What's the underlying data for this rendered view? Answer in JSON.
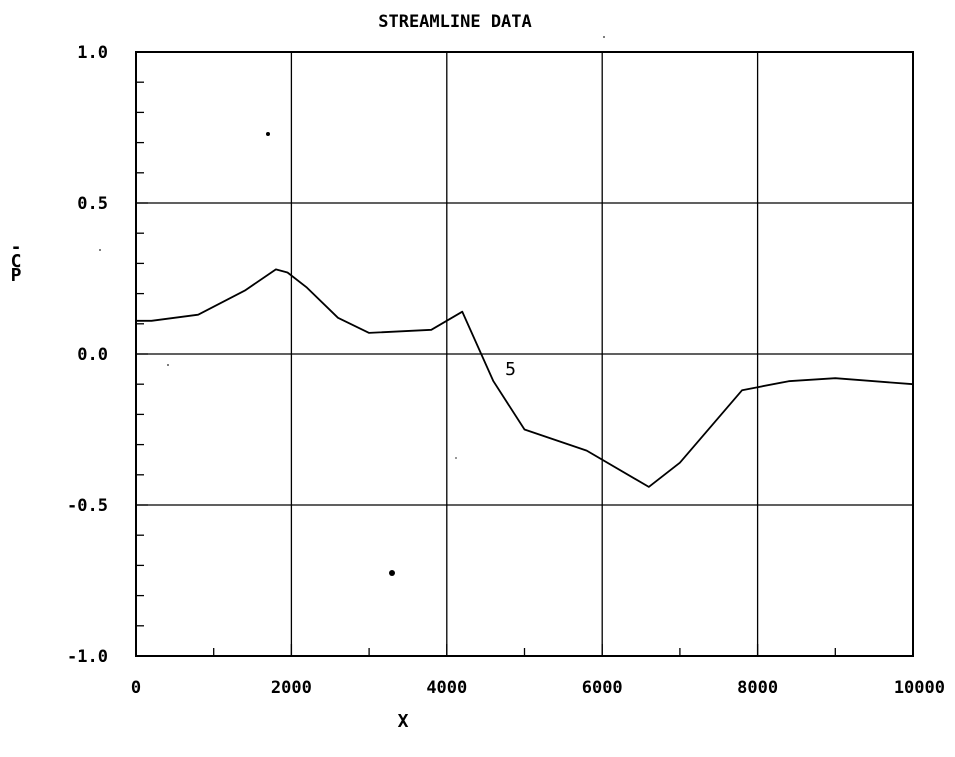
{
  "chart_data": {
    "type": "line",
    "title": "STREAMLINE DATA",
    "xlabel": "X",
    "ylabel": "-CP",
    "xlim": [
      0,
      10000
    ],
    "ylim": [
      -1.0,
      1.0
    ],
    "x_ticks": [
      0,
      2000,
      4000,
      6000,
      8000,
      10000
    ],
    "x_tick_labels": [
      "0",
      "2000",
      "4000",
      "6000",
      "8000",
      "10000"
    ],
    "y_ticks": [
      1.0,
      0.5,
      0.0,
      -0.5,
      -1.0
    ],
    "y_tick_labels": [
      "1.0",
      "0.5",
      "0.0",
      "-0.5",
      "-1.0"
    ],
    "grid": true,
    "series": [
      {
        "name": "5",
        "color": "#000000",
        "x": [
          0,
          200,
          800,
          1400,
          1800,
          1950,
          2200,
          2600,
          3000,
          3800,
          4200,
          4600,
          5000,
          5800,
          6600,
          7000,
          7800,
          8000,
          8400,
          9000,
          10000
        ],
        "y": [
          0.11,
          0.11,
          0.13,
          0.21,
          0.28,
          0.27,
          0.22,
          0.12,
          0.07,
          0.08,
          0.14,
          -0.09,
          -0.25,
          -0.32,
          -0.44,
          -0.36,
          -0.12,
          -0.11,
          -0.09,
          -0.08,
          -0.1
        ]
      }
    ],
    "series_label_at": {
      "x": 4750,
      "y": -0.07
    }
  }
}
